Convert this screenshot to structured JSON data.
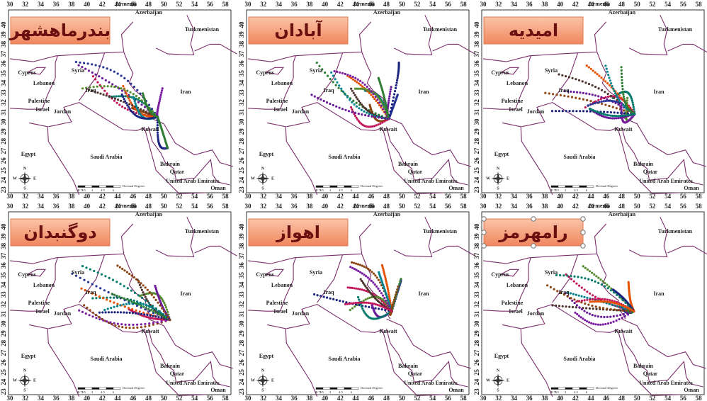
{
  "lon_ticks": [
    30,
    32,
    34,
    36,
    38,
    40,
    42,
    44,
    46,
    48,
    50,
    52,
    54,
    56,
    58
  ],
  "lat_ticks": [
    23,
    24,
    25,
    26,
    27,
    28,
    29,
    30,
    31,
    32,
    33,
    34,
    35,
    36,
    37,
    38,
    39,
    40
  ],
  "panels": [
    {
      "title": "بندرماهشهر"
    },
    {
      "title": "آبادان"
    },
    {
      "title": "امیدیه"
    },
    {
      "title": "دوگنبدان"
    },
    {
      "title": "اهواز"
    },
    {
      "title": "رامهرمز"
    }
  ],
  "countries": [
    "Armenia",
    "Azerbaijan",
    "Turkmenistan",
    "Syria",
    "Cyprus",
    "Lebanon",
    "Palestine",
    "Israel",
    "Jordan",
    "Iraq",
    "Iran",
    "Kuwait",
    "Saudi Arabia",
    "Egypt",
    "Bahrain",
    "Qatar",
    "United Arab Emirates",
    "Oman"
  ],
  "compass": [
    "N",
    "S",
    "W",
    "E"
  ],
  "scale_labels": [
    "0",
    "0.75",
    "1.5",
    "3",
    "4.5",
    "6",
    "Decimal Degrees"
  ]
}
